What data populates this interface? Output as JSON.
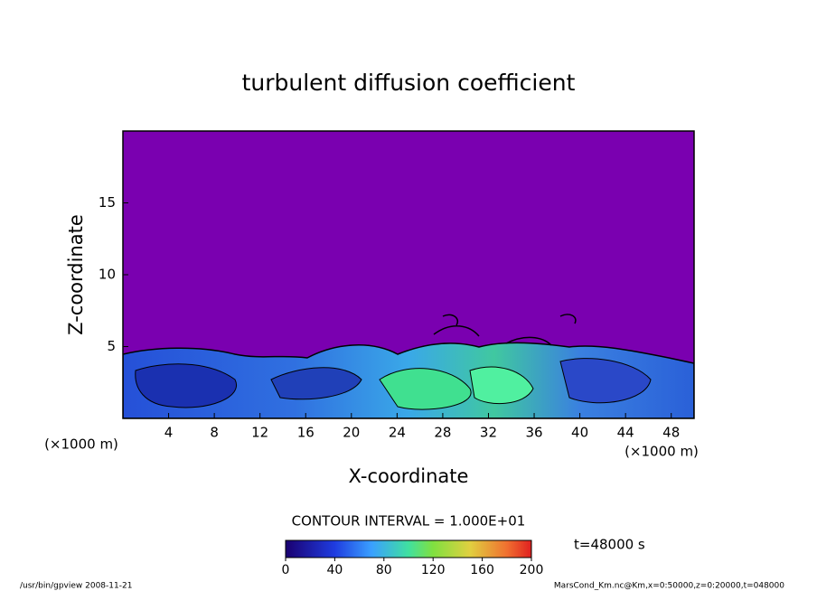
{
  "chart_data": {
    "type": "contour",
    "title": "turbulent diffusion coefficient",
    "xlabel": "X-coordinate",
    "ylabel": "Z-coordinate",
    "xlabel_unit": "(×1000 m)",
    "ylabel_unit": "(×1000 m)",
    "xlim": [
      0,
      50
    ],
    "ylim": [
      0,
      20
    ],
    "xticks": [
      4,
      8,
      12,
      16,
      20,
      24,
      28,
      32,
      36,
      40,
      44,
      48
    ],
    "yticks": [
      5,
      10,
      15
    ],
    "contour_interval": "CONTOUR INTERVAL = 1.000E+01",
    "colorbar": {
      "lim": [
        0,
        200
      ],
      "ticks": [
        0,
        40,
        80,
        120,
        160,
        200
      ]
    },
    "time_label": "t=48000 s",
    "footer_left": "/usr/bin/gpview  2008-11-21",
    "footer_right": "MarsCond_Km.nc@Km,x=0:50000,z=0:20000,t=048000"
  }
}
